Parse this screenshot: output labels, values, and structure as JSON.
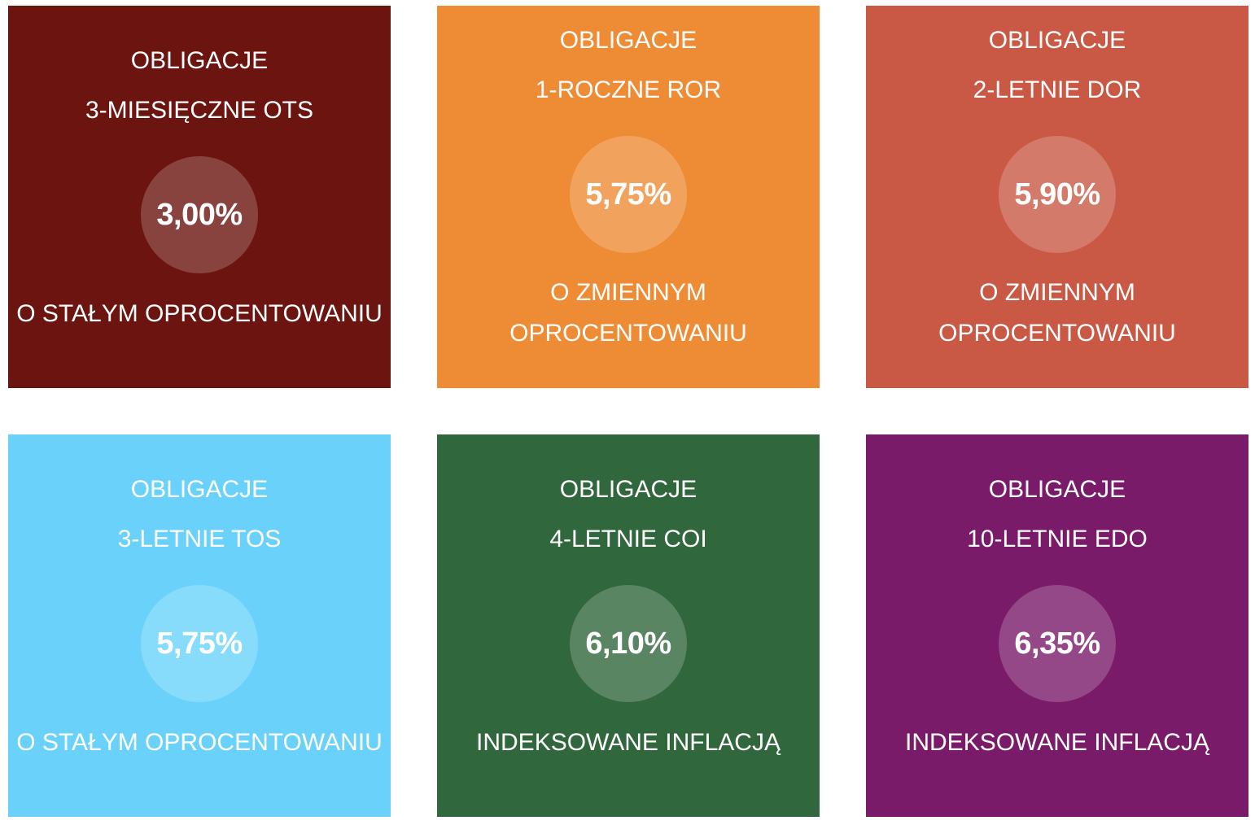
{
  "cards": [
    {
      "title": "OBLIGACJE",
      "subtitle": "3-MIESIĘCZNE OTS",
      "rate": "3,00%",
      "desc_line1": "O STAŁYM OPROCENTOWANIU",
      "desc_line2": "",
      "color": "#6c1510"
    },
    {
      "title": "OBLIGACJE",
      "subtitle": "1-ROCZNE ROR",
      "rate": "5,75%",
      "desc_line1": "O ZMIENNYM",
      "desc_line2": "OPROCENTOWANIU",
      "color": "#ee8c36"
    },
    {
      "title": "OBLIGACJE",
      "subtitle": "2-LETNIE DOR",
      "rate": "5,90%",
      "desc_line1": "O ZMIENNYM",
      "desc_line2": "OPROCENTOWANIU",
      "color": "#c95945"
    },
    {
      "title": "OBLIGACJE",
      "subtitle": "3-LETNIE TOS",
      "rate": "5,75%",
      "desc_line1": "O STAŁYM OPROCENTOWANIU",
      "desc_line2": "",
      "color": "#6ad2fa"
    },
    {
      "title": "OBLIGACJE",
      "subtitle": "4-LETNIE COI",
      "rate": "6,10%",
      "desc_line1": "INDEKSOWANE INFLACJĄ",
      "desc_line2": "",
      "color": "#31673d"
    },
    {
      "title": "OBLIGACJE",
      "subtitle": "10-LETNIE EDO",
      "rate": "6,35%",
      "desc_line1": "INDEKSOWANE INFLACJĄ",
      "desc_line2": "",
      "color": "#7a1b6a"
    }
  ]
}
